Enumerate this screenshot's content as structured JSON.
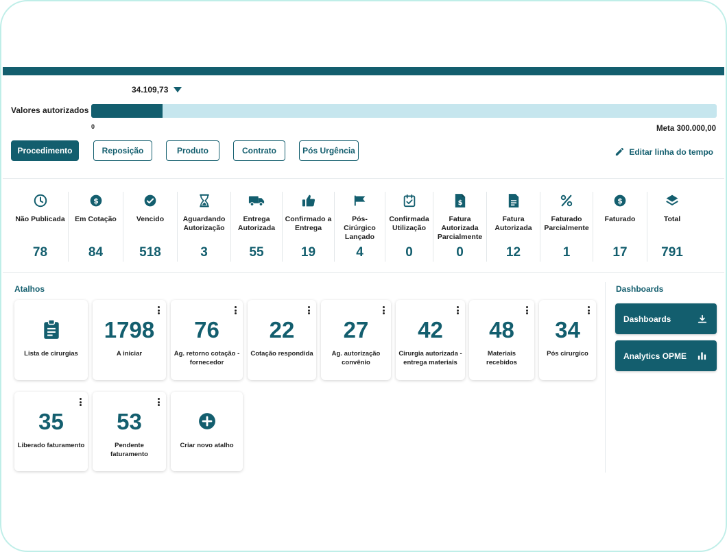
{
  "progress": {
    "current_value": "34.109,73",
    "label": "Valores autorizados",
    "min_label": "0",
    "max_label": "Meta 300.000,00",
    "fill_fraction": 0.1137
  },
  "tabs": [
    {
      "label": "Procedimento",
      "active": true
    },
    {
      "label": "Reposição",
      "active": false
    },
    {
      "label": "Produto",
      "active": false
    },
    {
      "label": "Contrato",
      "active": false
    },
    {
      "label": "Pós Urgência",
      "active": false
    }
  ],
  "edit_timeline_label": "Editar linha do tempo",
  "stats": [
    {
      "icon": "clock-icon",
      "label": "Não Publicada",
      "value": "78"
    },
    {
      "icon": "dollar-circle-icon",
      "label": "Em Cotação",
      "value": "84"
    },
    {
      "icon": "check-circle-icon",
      "label": "Vencido",
      "value": "518"
    },
    {
      "icon": "hourglass-icon",
      "label": "Aguardando Autorização",
      "value": "3"
    },
    {
      "icon": "truck-icon",
      "label": "Entrega Autorizada",
      "value": "55"
    },
    {
      "icon": "thumbs-up-icon",
      "label": "Confirmado a Entrega",
      "value": "19"
    },
    {
      "icon": "flag-icon",
      "label": "Pós-Cirúrgico Lançado",
      "value": "4"
    },
    {
      "icon": "calendar-check-icon",
      "label": "Confirmada Utilização",
      "value": "0"
    },
    {
      "icon": "invoice-dollar-icon",
      "label": "Fatura Autorizada Parcialmente",
      "value": "0"
    },
    {
      "icon": "document-icon",
      "label": "Fatura Autorizada",
      "value": "12"
    },
    {
      "icon": "percent-icon",
      "label": "Faturado Parcialmente",
      "value": "1"
    },
    {
      "icon": "dollar-circle-icon",
      "label": "Faturado",
      "value": "17"
    },
    {
      "icon": "layers-icon",
      "label": "Total",
      "value": "791"
    }
  ],
  "shortcuts": {
    "title": "Atalhos",
    "items": [
      {
        "type": "icon",
        "icon": "clipboard-list-icon",
        "label": "Lista de cirurgias"
      },
      {
        "type": "count",
        "value": "1798",
        "label": "A iniciar"
      },
      {
        "type": "count",
        "value": "76",
        "label": "Ag. retorno cotação - fornecedor"
      },
      {
        "type": "count",
        "value": "22",
        "label": "Cotação respondida"
      },
      {
        "type": "count",
        "value": "27",
        "label": "Ag. autorização convênio"
      },
      {
        "type": "count",
        "value": "42",
        "label": "Cirurgia autorizada - entrega materiais"
      },
      {
        "type": "count",
        "value": "48",
        "label": "Materiais recebidos"
      },
      {
        "type": "count",
        "value": "34",
        "label": "Pós cirurgico"
      },
      {
        "type": "count",
        "value": "35",
        "label": "Liberado faturamento"
      },
      {
        "type": "count",
        "value": "53",
        "label": "Pendente faturamento"
      },
      {
        "type": "icon",
        "icon": "plus-circle-icon",
        "label": "Criar novo atalho"
      }
    ]
  },
  "dashboards": {
    "title": "Dashboards",
    "buttons": [
      {
        "label": "Dashboards",
        "icon": "download-icon"
      },
      {
        "label": "Analytics OPME",
        "icon": "bar-chart-icon"
      }
    ]
  },
  "colors": {
    "primary": "#135e6e",
    "track": "#c6e6ee",
    "frame": "#bfeee8"
  }
}
